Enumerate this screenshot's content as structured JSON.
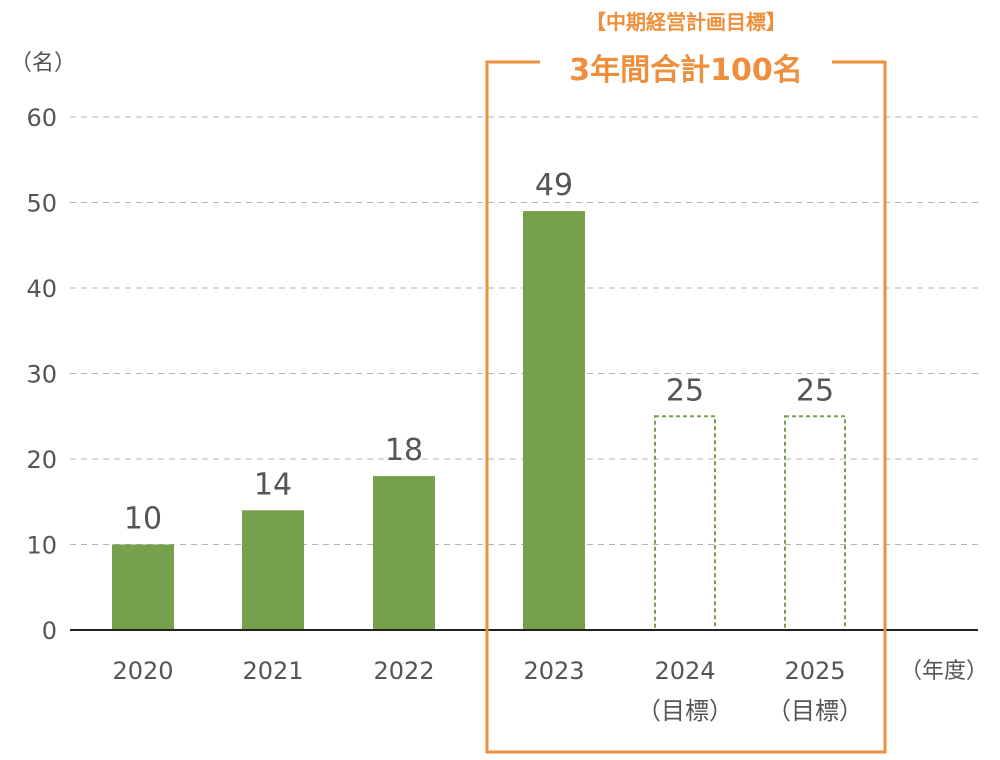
{
  "chart_data": {
    "type": "bar",
    "y_unit_label": "（名）",
    "x_unit_label": "（年度）",
    "ylim": [
      0,
      60
    ],
    "yticks": [
      "0",
      "10",
      "20",
      "30",
      "40",
      "50",
      "60"
    ],
    "grid": true,
    "categories": [
      {
        "label": "2020",
        "sublabel": ""
      },
      {
        "label": "2021",
        "sublabel": ""
      },
      {
        "label": "2022",
        "sublabel": ""
      },
      {
        "label": "2023",
        "sublabel": ""
      },
      {
        "label": "2024",
        "sublabel": "（目標）"
      },
      {
        "label": "2025",
        "sublabel": "（目標）"
      }
    ],
    "values": [
      10,
      14,
      18,
      49,
      25,
      25
    ],
    "value_labels": [
      "10",
      "14",
      "18",
      "49",
      "25",
      "25"
    ],
    "target": [
      false,
      false,
      false,
      false,
      true,
      true
    ],
    "colors": {
      "actual": "#76a04b",
      "target_outline": "#76a04b",
      "highlight": "#ee8f3c",
      "text": "#555555",
      "grid": "#b3b3b3"
    },
    "annotation": {
      "subtitle": "【中期経営計画目標】",
      "title": "3年間合計100名"
    }
  }
}
